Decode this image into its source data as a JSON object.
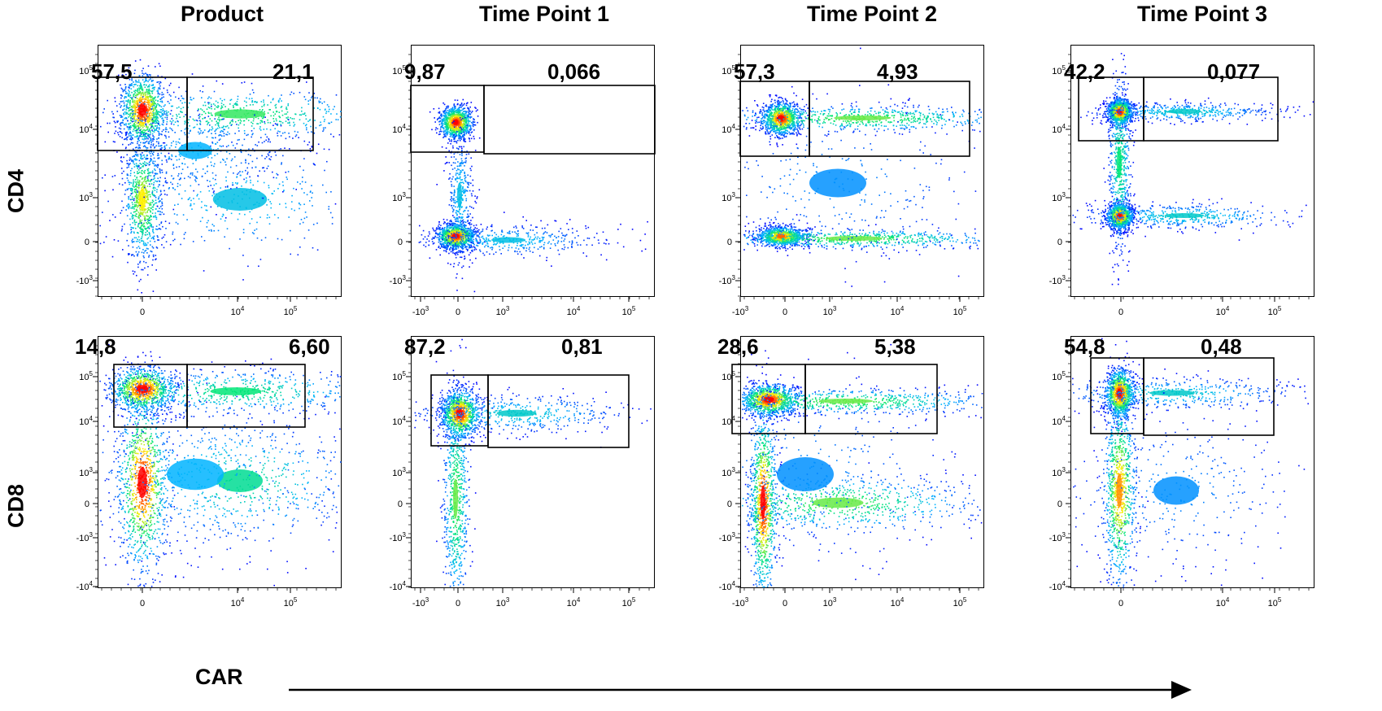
{
  "columns": [
    "Product",
    "Time Point 1",
    "Time Point 2",
    "Time Point 3"
  ],
  "rows": [
    "CD4",
    "CD8"
  ],
  "x_axis_label": "CAR",
  "colors": {
    "low": "#0000ff",
    "mid": "#00e0a0",
    "high": "#ff0000",
    "gate": "#000000"
  },
  "chart_data": [
    {
      "type": "scatter",
      "row": "CD4",
      "column": "Product",
      "x_ticks": [
        "0",
        "10^4",
        "10^5"
      ],
      "y_ticks": [
        "10^5",
        "10^4",
        "10^3",
        "0",
        "-10^3"
      ],
      "gates": [
        {
          "label": "57,5",
          "value": 57.5,
          "position": "left"
        },
        {
          "label": "21,1",
          "value": 21.1,
          "position": "right"
        }
      ]
    },
    {
      "type": "scatter",
      "row": "CD4",
      "column": "Time Point 1",
      "x_ticks": [
        "-10^3",
        "0",
        "10^3",
        "10^4",
        "10^5"
      ],
      "y_ticks": [
        "10^5",
        "10^4",
        "10^3",
        "0",
        "-10^3"
      ],
      "gates": [
        {
          "label": "9,87",
          "value": 9.87,
          "position": "left"
        },
        {
          "label": "0,066",
          "value": 0.066,
          "position": "right"
        }
      ]
    },
    {
      "type": "scatter",
      "row": "CD4",
      "column": "Time Point 2",
      "x_ticks": [
        "-10^3",
        "0",
        "10^3",
        "10^4",
        "10^5"
      ],
      "y_ticks": [
        "10^5",
        "10^4",
        "10^3",
        "0",
        "-10^3"
      ],
      "gates": [
        {
          "label": "57,3",
          "value": 57.3,
          "position": "left"
        },
        {
          "label": "4,93",
          "value": 4.93,
          "position": "right"
        }
      ]
    },
    {
      "type": "scatter",
      "row": "CD4",
      "column": "Time Point 3",
      "x_ticks": [
        "0",
        "10^4",
        "10^5"
      ],
      "y_ticks": [
        "10^5",
        "10^4",
        "10^3",
        "0",
        "-10^3"
      ],
      "gates": [
        {
          "label": "42,2",
          "value": 42.2,
          "position": "left"
        },
        {
          "label": "0,077",
          "value": 0.077,
          "position": "right"
        }
      ]
    },
    {
      "type": "scatter",
      "row": "CD8",
      "column": "Product",
      "x_ticks": [
        "0",
        "10^4",
        "10^5"
      ],
      "y_ticks": [
        "10^5",
        "10^4",
        "10^3",
        "0",
        "-10^3",
        "-10^4"
      ],
      "gates": [
        {
          "label": "14,8",
          "value": 14.8,
          "position": "left"
        },
        {
          "label": "6,60",
          "value": 6.6,
          "position": "right"
        }
      ]
    },
    {
      "type": "scatter",
      "row": "CD8",
      "column": "Time Point 1",
      "x_ticks": [
        "-10^3",
        "0",
        "10^3",
        "10^4",
        "10^5"
      ],
      "y_ticks": [
        "10^5",
        "10^4",
        "10^3",
        "0",
        "-10^3",
        "-10^4"
      ],
      "gates": [
        {
          "label": "87,2",
          "value": 87.2,
          "position": "left"
        },
        {
          "label": "0,81",
          "value": 0.81,
          "position": "right"
        }
      ]
    },
    {
      "type": "scatter",
      "row": "CD8",
      "column": "Time Point 2",
      "x_ticks": [
        "-10^3",
        "0",
        "10^3",
        "10^4",
        "10^5"
      ],
      "y_ticks": [
        "10^5",
        "10^4",
        "10^3",
        "0",
        "-10^3",
        "-10^4"
      ],
      "gates": [
        {
          "label": "28,6",
          "value": 28.6,
          "position": "left"
        },
        {
          "label": "5,38",
          "value": 5.38,
          "position": "right"
        }
      ]
    },
    {
      "type": "scatter",
      "row": "CD8",
      "column": "Time Point 3",
      "x_ticks": [
        "0",
        "10^4",
        "10^5"
      ],
      "y_ticks": [
        "10^5",
        "10^4",
        "10^3",
        "0",
        "-10^3",
        "-10^4"
      ],
      "gates": [
        {
          "label": "54,8",
          "value": 54.8,
          "position": "left"
        },
        {
          "label": "0,48",
          "value": 0.48,
          "position": "right"
        }
      ]
    }
  ]
}
